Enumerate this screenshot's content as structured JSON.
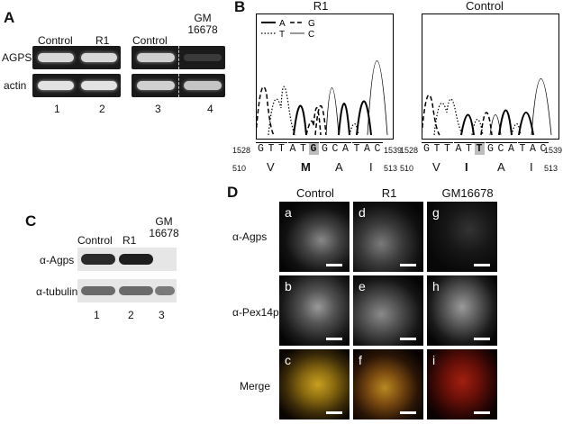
{
  "panel_a": {
    "label": "A",
    "lanes_left": [
      "Control",
      "R1"
    ],
    "lanes_right": [
      "Control",
      "GM 16678"
    ],
    "rows": [
      "AGPS",
      "actin"
    ],
    "lane_numbers": [
      "1",
      "2",
      "3",
      "4"
    ]
  },
  "panel_b": {
    "label": "B",
    "titles": [
      "R1",
      "Control"
    ],
    "legend": [
      "A",
      "G",
      "T",
      "C"
    ],
    "r1": {
      "pos_start": "1528",
      "pos_end": "1539",
      "codon_start": "510",
      "codon_end": "513",
      "bases": [
        "G",
        "T",
        "T",
        "A",
        "T",
        "G",
        "G",
        "C",
        "A",
        "T",
        "A",
        "C"
      ],
      "highlight_index": 5,
      "aminoacids": [
        "V",
        "M",
        "A",
        "I"
      ]
    },
    "control": {
      "pos_start": "1528",
      "pos_end": "1539",
      "codon_start": "510",
      "codon_end": "513",
      "bases": [
        "G",
        "T",
        "T",
        "A",
        "T",
        "T",
        "G",
        "C",
        "A",
        "T",
        "A",
        "C"
      ],
      "highlight_index": 5,
      "aminoacids": [
        "V",
        "I",
        "A",
        "I"
      ]
    }
  },
  "panel_c": {
    "label": "C",
    "lanes": [
      "Control",
      "R1",
      "GM 16678"
    ],
    "rows": [
      "α-Agps",
      "α-tubulin"
    ],
    "lane_numbers": [
      "1",
      "2",
      "3"
    ]
  },
  "panel_d": {
    "label": "D",
    "columns": [
      "Control",
      "R1",
      "GM16678"
    ],
    "rows": [
      "α-Agps",
      "α-Pex14p",
      "Merge"
    ],
    "tiles": [
      "a",
      "d",
      "g",
      "b",
      "e",
      "h",
      "c",
      "f",
      "i"
    ]
  }
}
